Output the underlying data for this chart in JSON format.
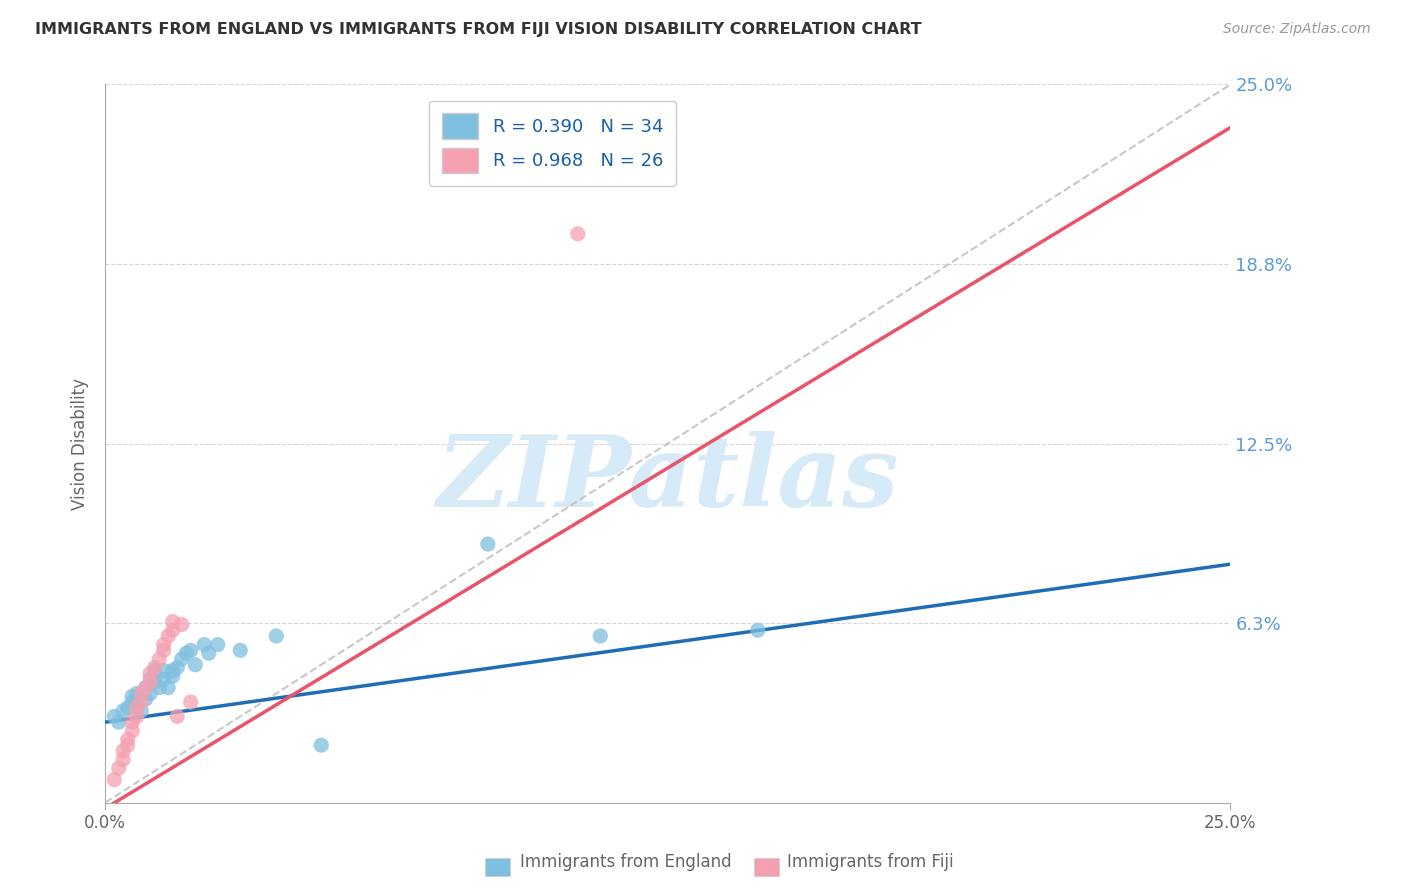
{
  "title": "IMMIGRANTS FROM ENGLAND VS IMMIGRANTS FROM FIJI VISION DISABILITY CORRELATION CHART",
  "source": "Source: ZipAtlas.com",
  "ylabel": "Vision Disability",
  "xlabel_label1": "Immigrants from England",
  "xlabel_label2": "Immigrants from Fiji",
  "xlim": [
    0.0,
    0.25
  ],
  "ylim": [
    0.0,
    0.25
  ],
  "ytick_positions": [
    0.0,
    0.0625,
    0.125,
    0.1875,
    0.25
  ],
  "ytick_labels": [
    "",
    "6.3%",
    "12.5%",
    "18.8%",
    "25.0%"
  ],
  "xtick_labels": [
    "0.0%",
    "25.0%"
  ],
  "r_england": 0.39,
  "n_england": 34,
  "r_fiji": 0.968,
  "n_fiji": 26,
  "color_england": "#7fbfdf",
  "color_fiji": "#f4a0b0",
  "line_color_england": "#1f6eb5",
  "line_color_fiji": "#e8546a",
  "diagonal_color": "#bbbbbb",
  "watermark": "ZIPatlas",
  "watermark_color": "#d6eaf8",
  "england_x": [
    0.002,
    0.003,
    0.004,
    0.005,
    0.006,
    0.006,
    0.007,
    0.008,
    0.009,
    0.009,
    0.01,
    0.01,
    0.011,
    0.011,
    0.012,
    0.013,
    0.013,
    0.014,
    0.015,
    0.015,
    0.016,
    0.017,
    0.018,
    0.019,
    0.02,
    0.022,
    0.023,
    0.025,
    0.03,
    0.038,
    0.048,
    0.085,
    0.11,
    0.145
  ],
  "england_y": [
    0.03,
    0.028,
    0.032,
    0.033,
    0.035,
    0.037,
    0.038,
    0.032,
    0.036,
    0.04,
    0.038,
    0.043,
    0.042,
    0.046,
    0.04,
    0.043,
    0.046,
    0.04,
    0.044,
    0.046,
    0.047,
    0.05,
    0.052,
    0.053,
    0.048,
    0.055,
    0.052,
    0.055,
    0.053,
    0.058,
    0.02,
    0.09,
    0.058,
    0.06
  ],
  "fiji_x": [
    0.002,
    0.003,
    0.004,
    0.004,
    0.005,
    0.005,
    0.006,
    0.006,
    0.007,
    0.007,
    0.008,
    0.008,
    0.009,
    0.01,
    0.01,
    0.011,
    0.012,
    0.013,
    0.013,
    0.014,
    0.015,
    0.015,
    0.016,
    0.017,
    0.019,
    0.105
  ],
  "fiji_y": [
    0.008,
    0.012,
    0.015,
    0.018,
    0.02,
    0.022,
    0.025,
    0.028,
    0.03,
    0.033,
    0.035,
    0.038,
    0.04,
    0.042,
    0.045,
    0.047,
    0.05,
    0.053,
    0.055,
    0.058,
    0.06,
    0.063,
    0.03,
    0.062,
    0.035,
    0.198
  ],
  "eng_line_x0": 0.0,
  "eng_line_y0": 0.028,
  "eng_line_x1": 0.25,
  "eng_line_y1": 0.083,
  "fiji_line_x0": 0.0,
  "fiji_line_y0": -0.002,
  "fiji_line_x1": 0.25,
  "fiji_line_y1": 0.235
}
